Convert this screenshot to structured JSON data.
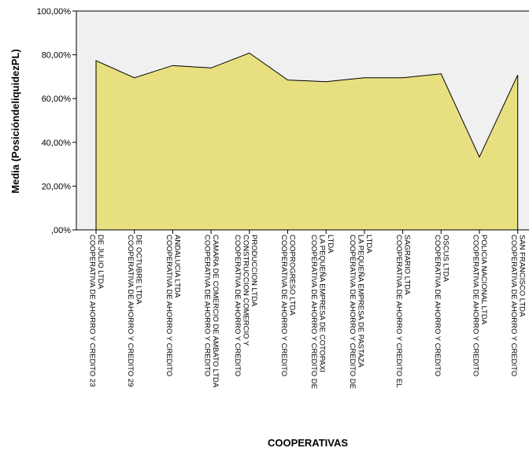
{
  "chart_data": {
    "type": "area",
    "title": "",
    "xlabel": "COOPERATIVAS",
    "ylabel": "Media (PosicióndeliquidezPL)",
    "ylim": [
      0,
      1
    ],
    "y_tick_labels": [
      "100,00%",
      "80,00%",
      "60,00%",
      "40,00%",
      "20,00%",
      ",00%"
    ],
    "y_tick_values": [
      1.0,
      0.8,
      0.6,
      0.4,
      0.2,
      0.0
    ],
    "grid": false,
    "legend": "none",
    "area_fill": "#e8df80",
    "plot_background": "#f0f0f0",
    "categories": [
      [
        "COOPERATIVA DE AHORRO Y CREDITO 23",
        "DE JULIO LTDA"
      ],
      [
        "COOPERATIVA DE AHORRO Y CREDITO 29",
        "DE OCTUBRE LTDA"
      ],
      [
        "COOPERATIVA DE AHORRO Y CREDITO",
        "ANDALUCIA LTDA"
      ],
      [
        "COOPERATIVA DE AHORRO Y CREDITO",
        "CAMARA DE COMERCIO DE AMBATO LTDA"
      ],
      [
        "COOPERATIVA DE AHORRO Y CREDITO",
        "CONSTRUCCION COMERCIO Y",
        "PRODUCCION LTDA"
      ],
      [
        "COOPERATIVA DE AHORRO Y CREDITO",
        "COOPROGRESO LTDA"
      ],
      [
        "COOPERATIVA DE AHORRO Y CREDITO DE",
        "LA PEQUEÑA EMPRESA DE COTOPAXI",
        "LTDA"
      ],
      [
        "COOPERATIVA DE AHORRO Y CREDITO DE",
        "LA PEQUEÑA EMPRESA DE PASTAZA",
        "LTDA"
      ],
      [
        "COOPERATIVA DE AHORRO Y CREDITO EL",
        "SAGRARIO LTDA"
      ],
      [
        "COOPERATIVA DE AHORRO Y CREDITO",
        "OSCUS LTDA"
      ],
      [
        "COOPERATIVA DE AHORRO Y CREDITO",
        "POLICIA NACIONAL LTDA"
      ],
      [
        "COOPERATIVA DE AHORRO Y CREDITO",
        "SAN FRANCISCO LTDA"
      ]
    ],
    "values": [
      0.773,
      0.695,
      0.751,
      0.74,
      0.808,
      0.685,
      0.677,
      0.695,
      0.695,
      0.713,
      0.333,
      0.708
    ]
  }
}
